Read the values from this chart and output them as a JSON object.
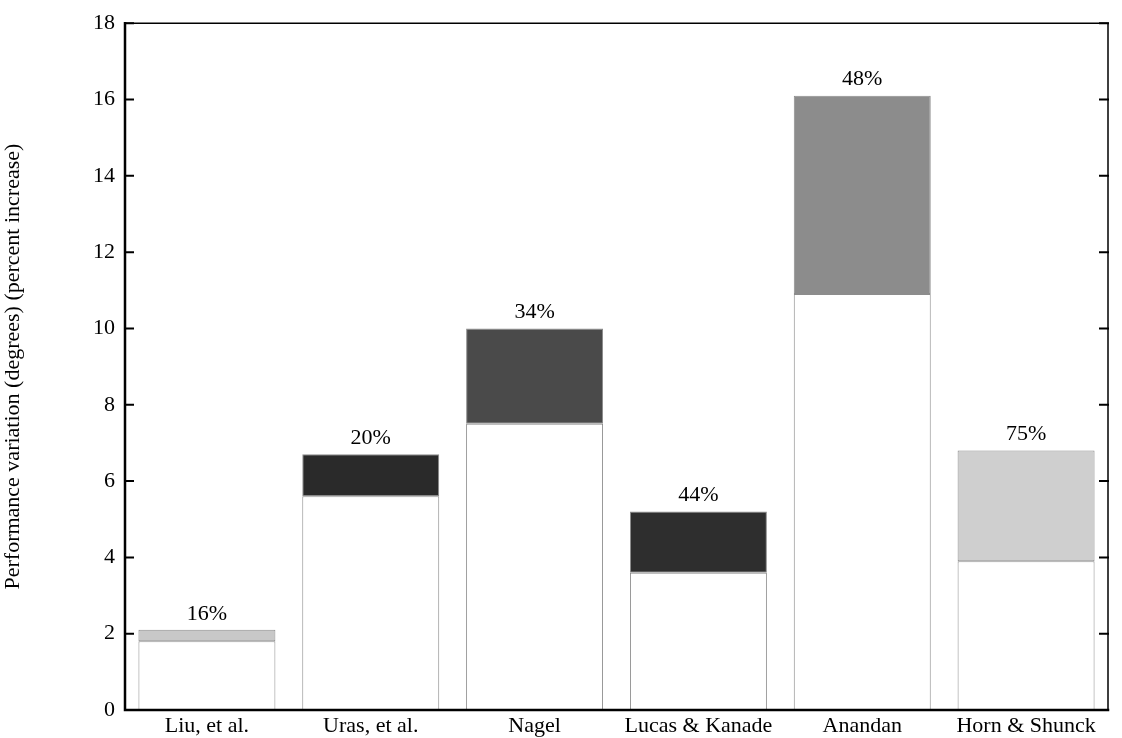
{
  "chart_data": {
    "type": "bar",
    "ylabel": "Performance variation (degrees) (percent increase)",
    "categories": [
      "Liu, et al.",
      "Uras, et al.",
      "Nagel",
      "Lucas & Kanade",
      "Anandan",
      "Horn & Shunck"
    ],
    "stacked": true,
    "series": [
      {
        "color": "#ffffff",
        "values": [
          1.8,
          5.6,
          7.5,
          3.6,
          10.9,
          3.9
        ]
      },
      {
        "colors": [
          "#c8c8c8",
          "#2a2a2a",
          "#4a4a4a",
          "#2e2e2e",
          "#8c8c8c",
          "#cfcfcf"
        ],
        "values": [
          0.3,
          1.1,
          2.5,
          1.6,
          5.2,
          2.9
        ]
      }
    ],
    "annotations": [
      {
        "text": "16%",
        "x": "Liu, et al.",
        "y": 2.1
      },
      {
        "text": "20%",
        "x": "Uras, et al.",
        "y": 6.7
      },
      {
        "text": "34%",
        "x": "Nagel",
        "y": 10
      },
      {
        "text": "44%",
        "x": "Lucas & Kanade",
        "y": 5.2
      },
      {
        "text": "48%",
        "x": "Anandan",
        "y": 16.1
      },
      {
        "text": "75%",
        "x": "Horn & Shunck",
        "y": 6.8
      }
    ],
    "ylim": [
      0,
      18
    ],
    "yticks": [
      0,
      2,
      4,
      6,
      8,
      10,
      12,
      14,
      16,
      18
    ],
    "grid": false,
    "legend": false
  }
}
